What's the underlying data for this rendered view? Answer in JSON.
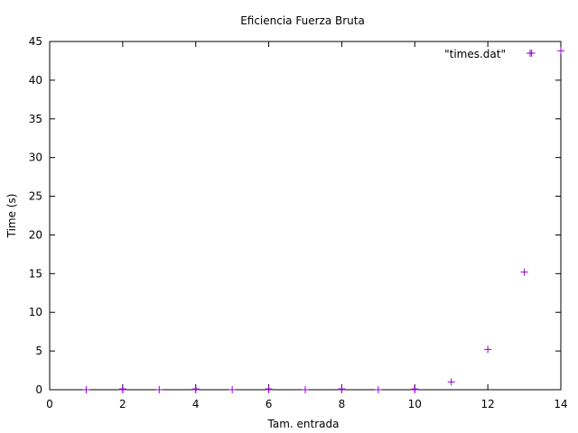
{
  "chart_data": {
    "type": "scatter",
    "title": "Eficiencia Fuerza Bruta",
    "xlabel": "Tam. entrada",
    "ylabel": "Time (s)",
    "xlim": [
      0,
      14
    ],
    "ylim": [
      0,
      45
    ],
    "xticks": [
      0,
      2,
      4,
      6,
      8,
      10,
      12,
      14
    ],
    "yticks": [
      0,
      5,
      10,
      15,
      20,
      25,
      30,
      35,
      40,
      45
    ],
    "grid": false,
    "legend_position": "top-right",
    "marker": "plus",
    "series": [
      {
        "name": "\"times.dat\"",
        "color": "#9400d3",
        "points": [
          [
            1,
            0
          ],
          [
            2,
            0
          ],
          [
            2,
            0.1
          ],
          [
            3,
            0
          ],
          [
            4,
            0
          ],
          [
            4,
            0.1
          ],
          [
            5,
            0
          ],
          [
            6,
            0
          ],
          [
            6,
            0.1
          ],
          [
            7,
            0
          ],
          [
            8,
            0
          ],
          [
            8,
            0.1
          ],
          [
            9,
            0
          ],
          [
            10,
            0
          ],
          [
            10,
            0.1
          ],
          [
            11,
            1.0
          ],
          [
            12,
            5.2
          ],
          [
            13,
            15.2
          ],
          [
            13.2,
            43.5
          ],
          [
            14,
            43.8
          ]
        ]
      }
    ]
  }
}
